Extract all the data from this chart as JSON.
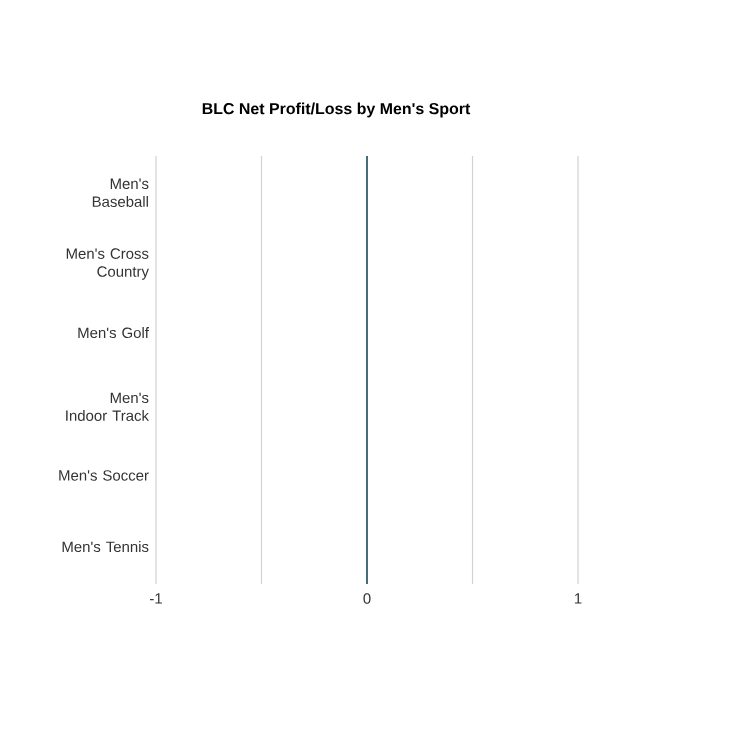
{
  "chart_data": {
    "type": "bar",
    "orientation": "horizontal",
    "title": "BLC Net Profit/Loss by Men's Sport",
    "categories": [
      "Men's Baseball",
      "Men's Cross Country",
      "Men's Golf",
      "Men's Indoor Track",
      "Men's Soccer",
      "Men's Tennis"
    ],
    "values": [
      0,
      0,
      0,
      0,
      0,
      0
    ],
    "xlim": [
      -1,
      1
    ],
    "ref_lines": [
      {
        "axis": "x",
        "value": 0,
        "color": "#1f4e5a"
      }
    ],
    "xticks": [
      -1,
      {
        "value": -0.5,
        "label": null
      },
      0,
      {
        "value": 0.5,
        "label": null
      },
      1
    ],
    "grid": "x"
  }
}
